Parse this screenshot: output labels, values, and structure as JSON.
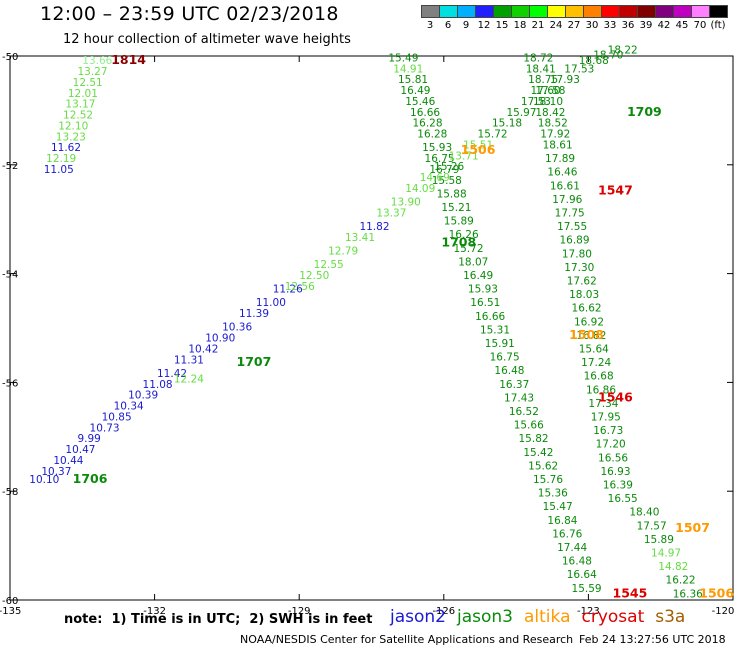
{
  "header": {
    "title": "12:00 – 23:59 UTC 02/23/2018",
    "subtitle": "12 hour collection of altimeter wave heights"
  },
  "colorbar": {
    "colors": [
      "#808080",
      "#00e0e0",
      "#00b0ff",
      "#2020ff",
      "#00a000",
      "#10d000",
      "#00ff00",
      "#ffff00",
      "#ffc000",
      "#ff8000",
      "#ff0000",
      "#c00000",
      "#800000",
      "#800080",
      "#c000c0",
      "#ff80ff",
      "#000000"
    ],
    "labels": [
      "3",
      "6",
      "9",
      "12",
      "15",
      "18",
      "21",
      "24",
      "27",
      "30",
      "33",
      "36",
      "39",
      "42",
      "45",
      "70",
      "(ft)"
    ]
  },
  "axes": {
    "x_ticks": [
      "-135",
      "-132",
      "-129",
      "-126",
      "-123",
      "-120"
    ],
    "y_ticks": [
      "-50",
      "-52",
      "-54",
      "-56",
      "-58",
      "-60"
    ],
    "x_range": [
      -135,
      -120
    ],
    "y_range": [
      -60,
      -50
    ]
  },
  "note": "note:  1) Time is in UTC;  2) SWH is in feet",
  "legend": [
    {
      "name": "jason2",
      "color": "#1a1ad0"
    },
    {
      "name": "jason3",
      "color": "#0a8a0a"
    },
    {
      "name": "altika",
      "color": "#ff9900"
    },
    {
      "name": "cryosat",
      "color": "#dd0000"
    },
    {
      "name": "s3a",
      "color": "#a06000"
    }
  ],
  "footer": {
    "credit": "NOAA/NESDIS Center for Satellite Applications and Research",
    "timestamp": "Feb 24 13:27:56 UTC 2018"
  },
  "chart_data": {
    "type": "scatter",
    "tracks": [
      {
        "satellite": "s3a",
        "time_label": "1814",
        "time_label_color": "#8b0000",
        "time_label_pos": [
          -132.9,
          -50.15
        ],
        "points": [
          [
            -133.5,
            -50.15,
            "13.66",
            "#90ee90"
          ],
          [
            -133.6,
            -50.35,
            "13.27",
            "#66dd44"
          ],
          [
            -133.7,
            -50.55,
            "12.51",
            "#66dd44"
          ],
          [
            -133.8,
            -50.75,
            "12.01",
            "#66dd44"
          ],
          [
            -133.85,
            -50.95,
            "13.17",
            "#66dd44"
          ],
          [
            -133.9,
            -51.15,
            "12.52",
            "#66dd44"
          ],
          [
            -134.0,
            -51.35,
            "12.10",
            "#66dd44"
          ],
          [
            -134.05,
            -51.55,
            "13.23",
            "#66dd44"
          ],
          [
            -134.15,
            -51.75,
            "11.62",
            "#1a1ad0"
          ],
          [
            -134.25,
            -51.95,
            "12.19",
            "#66dd44"
          ],
          [
            -134.3,
            -52.15,
            "11.05",
            "#1a1ad0"
          ]
        ]
      },
      {
        "satellite": "jason3",
        "time_label": "1708",
        "time_label_color": "#0a8a0a",
        "time_label_pos": [
          -126.05,
          -53.5
        ],
        "points": [
          [
            -127.15,
            -50.1,
            "15.49",
            "#0a8a0a"
          ],
          [
            -127.05,
            -50.3,
            "14.91",
            "#66dd44"
          ],
          [
            -126.95,
            -50.5,
            "15.81",
            "#0a8a0a"
          ],
          [
            -126.9,
            -50.7,
            "16.49",
            "#0a8a0a"
          ],
          [
            -126.8,
            -50.9,
            "15.46",
            "#0a8a0a"
          ],
          [
            -126.7,
            -51.1,
            "16.66",
            "#0a8a0a"
          ],
          [
            -126.65,
            -51.3,
            "16.28",
            "#0a8a0a"
          ],
          [
            -126.55,
            -51.5,
            "16.28",
            "#0a8a0a"
          ],
          [
            -126.45,
            -51.75,
            "15.93",
            "#0a8a0a"
          ],
          [
            -126.4,
            -51.95,
            "16.75",
            "#0a8a0a"
          ],
          [
            -126.3,
            -52.15,
            "16.79",
            "#0a8a0a"
          ],
          [
            -126.25,
            -52.35,
            "15.58",
            "#0a8a0a"
          ],
          [
            -126.15,
            -52.6,
            "15.88",
            "#0a8a0a"
          ],
          [
            -126.05,
            -52.85,
            "15.21",
            "#0a8a0a"
          ],
          [
            -126.0,
            -53.1,
            "15.89",
            "#0a8a0a"
          ],
          [
            -125.9,
            -53.35,
            "16.26",
            "#0a8a0a"
          ],
          [
            -125.8,
            -53.6,
            "15.72",
            "#0a8a0a"
          ],
          [
            -125.7,
            -53.85,
            "18.07",
            "#0a8a0a"
          ],
          [
            -125.6,
            -54.1,
            "16.49",
            "#0a8a0a"
          ],
          [
            -125.5,
            -54.35,
            "15.93",
            "#0a8a0a"
          ],
          [
            -125.45,
            -54.6,
            "16.51",
            "#0a8a0a"
          ],
          [
            -125.35,
            -54.85,
            "16.66",
            "#0a8a0a"
          ],
          [
            -125.25,
            -55.1,
            "15.31",
            "#0a8a0a"
          ],
          [
            -125.15,
            -55.35,
            "15.91",
            "#0a8a0a"
          ],
          [
            -125.05,
            -55.6,
            "16.75",
            "#0a8a0a"
          ],
          [
            -124.95,
            -55.85,
            "16.48",
            "#0a8a0a"
          ],
          [
            -124.85,
            -56.1,
            "16.37",
            "#0a8a0a"
          ],
          [
            -124.75,
            -56.35,
            "17.43",
            "#0a8a0a"
          ],
          [
            -124.65,
            -56.6,
            "16.52",
            "#0a8a0a"
          ],
          [
            -124.55,
            -56.85,
            "15.66",
            "#0a8a0a"
          ],
          [
            -124.45,
            -57.1,
            "15.82",
            "#0a8a0a"
          ],
          [
            -124.35,
            -57.35,
            "15.42",
            "#0a8a0a"
          ],
          [
            -124.25,
            -57.6,
            "15.62",
            "#0a8a0a"
          ],
          [
            -124.15,
            -57.85,
            "15.76",
            "#0a8a0a"
          ],
          [
            -124.05,
            -58.1,
            "15.36",
            "#0a8a0a"
          ],
          [
            -123.95,
            -58.35,
            "15.47",
            "#0a8a0a"
          ],
          [
            -123.85,
            -58.6,
            "16.84",
            "#0a8a0a"
          ],
          [
            -123.75,
            -58.85,
            "16.76",
            "#0a8a0a"
          ],
          [
            -123.65,
            -59.1,
            "17.44",
            "#0a8a0a"
          ],
          [
            -123.55,
            -59.35,
            "16.48",
            "#0a8a0a"
          ],
          [
            -123.45,
            -59.6,
            "16.64",
            "#0a8a0a"
          ],
          [
            -123.35,
            -59.85,
            "15.59",
            "#0a8a0a"
          ]
        ]
      },
      {
        "satellite": "jason3",
        "time_label": "1709",
        "time_label_color": "#0a8a0a",
        "time_label_pos": [
          -122.2,
          -51.1
        ],
        "points": [
          [
            -124.35,
            -50.1,
            "18.72",
            "#0a8a0a"
          ],
          [
            -124.3,
            -50.3,
            "18.41",
            "#0a8a0a"
          ],
          [
            -124.25,
            -50.5,
            "18.75",
            "#0a8a0a"
          ],
          [
            -124.2,
            -50.7,
            "17.60",
            "#0a8a0a"
          ],
          [
            -124.15,
            -50.9,
            "18.10",
            "#0a8a0a"
          ],
          [
            -124.1,
            -51.1,
            "18.42",
            "#0a8a0a"
          ],
          [
            -124.05,
            -51.3,
            "18.52",
            "#0a8a0a"
          ],
          [
            -124.0,
            -51.5,
            "17.92",
            "#0a8a0a"
          ],
          [
            -123.95,
            -51.7,
            "18.61",
            "#0a8a0a"
          ],
          [
            -123.9,
            -51.95,
            "17.89",
            "#0a8a0a"
          ],
          [
            -123.85,
            -52.2,
            "16.46",
            "#0a8a0a"
          ],
          [
            -123.8,
            -52.45,
            "16.61",
            "#0a8a0a"
          ],
          [
            -123.75,
            -52.7,
            "17.96",
            "#0a8a0a"
          ],
          [
            -123.7,
            -52.95,
            "17.75",
            "#0a8a0a"
          ],
          [
            -123.65,
            -53.2,
            "17.55",
            "#0a8a0a"
          ],
          [
            -123.6,
            -53.45,
            "16.89",
            "#0a8a0a"
          ],
          [
            -123.55,
            -53.7,
            "17.80",
            "#0a8a0a"
          ],
          [
            -123.5,
            -53.95,
            "17.30",
            "#0a8a0a"
          ],
          [
            -123.45,
            -54.2,
            "17.62",
            "#0a8a0a"
          ],
          [
            -123.4,
            -54.45,
            "18.03",
            "#0a8a0a"
          ],
          [
            -123.35,
            -54.7,
            "16.62",
            "#0a8a0a"
          ],
          [
            -123.3,
            -54.95,
            "16.92",
            "#0a8a0a"
          ],
          [
            -123.25,
            -55.2,
            "16.82",
            "#0a8a0a"
          ],
          [
            -123.2,
            -55.45,
            "15.64",
            "#0a8a0a"
          ],
          [
            -123.15,
            -55.7,
            "17.24",
            "#0a8a0a"
          ],
          [
            -123.1,
            -55.95,
            "16.68",
            "#0a8a0a"
          ],
          [
            -123.05,
            -56.2,
            "16.86",
            "#0a8a0a"
          ],
          [
            -123.0,
            -56.45,
            "17.34",
            "#0a8a0a"
          ],
          [
            -122.95,
            -56.7,
            "17.95",
            "#0a8a0a"
          ],
          [
            -122.9,
            -56.95,
            "16.73",
            "#0a8a0a"
          ],
          [
            -122.85,
            -57.2,
            "17.20",
            "#0a8a0a"
          ],
          [
            -122.8,
            -57.45,
            "16.56",
            "#0a8a0a"
          ],
          [
            -122.75,
            -57.7,
            "16.93",
            "#0a8a0a"
          ],
          [
            -122.7,
            -57.95,
            "16.39",
            "#0a8a0a"
          ],
          [
            -122.6,
            -58.2,
            "16.55",
            "#0a8a0a"
          ]
        ]
      },
      {
        "satellite": "jason2",
        "time_label": "1706",
        "time_label_color": "#0a8a0a",
        "time_label_pos": [
          -133.7,
          -57.85
        ],
        "points": [
          [
            -134.6,
            -57.85,
            "10.10",
            "#1a1ad0"
          ],
          [
            -134.35,
            -57.7,
            "10.37",
            "#1a1ad0"
          ],
          [
            -134.1,
            -57.5,
            "10.44",
            "#1a1ad0"
          ],
          [
            -133.85,
            -57.3,
            "10.47",
            "#1a1ad0"
          ],
          [
            -133.6,
            -57.1,
            "9.99",
            "#1a1ad0"
          ],
          [
            -133.35,
            -56.9,
            "10.73",
            "#1a1ad0"
          ],
          [
            -133.1,
            -56.7,
            "10.85",
            "#1a1ad0"
          ],
          [
            -132.85,
            -56.5,
            "10.34",
            "#1a1ad0"
          ],
          [
            -132.55,
            -56.3,
            "10.39",
            "#1a1ad0"
          ],
          [
            -132.25,
            -56.1,
            "11.08",
            "#1a1ad0"
          ],
          [
            -131.95,
            -55.9,
            "11.42",
            "#1a1ad0"
          ],
          [
            -131.6,
            -55.65,
            "11.31",
            "#1a1ad0"
          ],
          [
            -131.3,
            -55.45,
            "10.42",
            "#1a1ad0"
          ],
          [
            -130.95,
            -55.25,
            "10.90",
            "#1a1ad0"
          ],
          [
            -130.6,
            -55.05,
            "10.36",
            "#1a1ad0"
          ],
          [
            -130.25,
            -54.8,
            "11.39",
            "#1a1ad0"
          ],
          [
            -129.9,
            -54.6,
            "11.00",
            "#1a1ad0"
          ],
          [
            -129.55,
            -54.35,
            "11.26",
            "#1a1ad0"
          ]
        ]
      },
      {
        "satellite": "jason3",
        "time_label": "1707",
        "time_label_color": "#0a8a0a",
        "time_label_pos": [
          -130.3,
          -55.7
        ],
        "points": [
          [
            -131.6,
            -56.0,
            "12.24",
            "#66dd44"
          ],
          [
            -129.3,
            -54.3,
            "12.56",
            "#66dd44"
          ],
          [
            -129.0,
            -54.1,
            "12.50",
            "#66dd44"
          ],
          [
            -128.7,
            -53.9,
            "12.55",
            "#66dd44"
          ],
          [
            -128.4,
            -53.65,
            "12.79",
            "#66dd44"
          ],
          [
            -128.05,
            -53.4,
            "13.41",
            "#66dd44"
          ],
          [
            -127.75,
            -53.2,
            "11.82",
            "#1a1ad0"
          ],
          [
            -127.4,
            -52.95,
            "13.37",
            "#66dd44"
          ],
          [
            -127.1,
            -52.75,
            "13.90",
            "#66dd44"
          ],
          [
            -126.8,
            -52.5,
            "14.09",
            "#66dd44"
          ],
          [
            -126.5,
            -52.3,
            "14.69",
            "#66dd44"
          ],
          [
            -126.2,
            -52.1,
            "15.26",
            "#0a8a0a"
          ],
          [
            -125.9,
            -51.9,
            "13.71",
            "#66dd44"
          ],
          [
            -125.6,
            -51.7,
            "15.51",
            "#66dd44"
          ],
          [
            -125.3,
            -51.5,
            "15.72",
            "#0a8a0a"
          ],
          [
            -125.0,
            -51.3,
            "15.18",
            "#0a8a0a"
          ],
          [
            -124.7,
            -51.1,
            "15.97",
            "#0a8a0a"
          ],
          [
            -124.4,
            -50.9,
            "17.53",
            "#0a8a0a"
          ],
          [
            -124.1,
            -50.7,
            "17.58",
            "#0a8a0a"
          ],
          [
            -123.8,
            -50.5,
            "17.93",
            "#0a8a0a"
          ],
          [
            -123.5,
            -50.3,
            "17.53",
            "#0a8a0a"
          ],
          [
            -123.2,
            -50.15,
            "18.68",
            "#0a8a0a"
          ],
          [
            -122.9,
            -50.05,
            "18.70",
            "#0a8a0a"
          ],
          [
            -122.6,
            -49.95,
            "18.22",
            "#0a8a0a"
          ]
        ]
      },
      {
        "satellite": "altika",
        "time_label": "1506",
        "time_label_color": "#ff9900",
        "time_label_pos": [
          -125.65,
          -51.8
        ],
        "points": []
      },
      {
        "satellite": "altika",
        "time_label": "1508",
        "time_label_color": "#ff9900",
        "time_label_pos": [
          -123.4,
          -55.2
        ],
        "points": []
      },
      {
        "satellite": "altika",
        "time_label": "1507",
        "time_label_color": "#ff9900",
        "time_label_pos": [
          -121.2,
          -58.75
        ],
        "points": [
          [
            -122.15,
            -58.45,
            "18.40",
            "#0a8a0a"
          ],
          [
            -122.0,
            -58.7,
            "17.57",
            "#0a8a0a"
          ],
          [
            -121.85,
            -58.95,
            "15.89",
            "#0a8a0a"
          ],
          [
            -121.7,
            -59.2,
            "14.97",
            "#66dd44"
          ],
          [
            -121.55,
            -59.45,
            "14.82",
            "#66dd44"
          ],
          [
            -121.4,
            -59.7,
            "16.22",
            "#0a8a0a"
          ],
          [
            -121.25,
            -59.95,
            "16.36",
            "#0a8a0a"
          ]
        ]
      },
      {
        "satellite": "altika",
        "time_label": "1506",
        "time_label_color": "#ff9900",
        "time_label_pos": [
          -120.7,
          -59.95
        ],
        "points": []
      },
      {
        "satellite": "cryosat",
        "time_label": "1547",
        "time_label_color": "#dd0000",
        "time_label_pos": [
          -122.8,
          -52.55
        ],
        "points": []
      },
      {
        "satellite": "cryosat",
        "time_label": "1546",
        "time_label_color": "#dd0000",
        "time_label_pos": [
          -122.8,
          -56.35
        ],
        "points": []
      },
      {
        "satellite": "cryosat",
        "time_label": "1545",
        "time_label_color": "#dd0000",
        "time_label_pos": [
          -122.5,
          -59.95
        ],
        "points": []
      }
    ]
  }
}
